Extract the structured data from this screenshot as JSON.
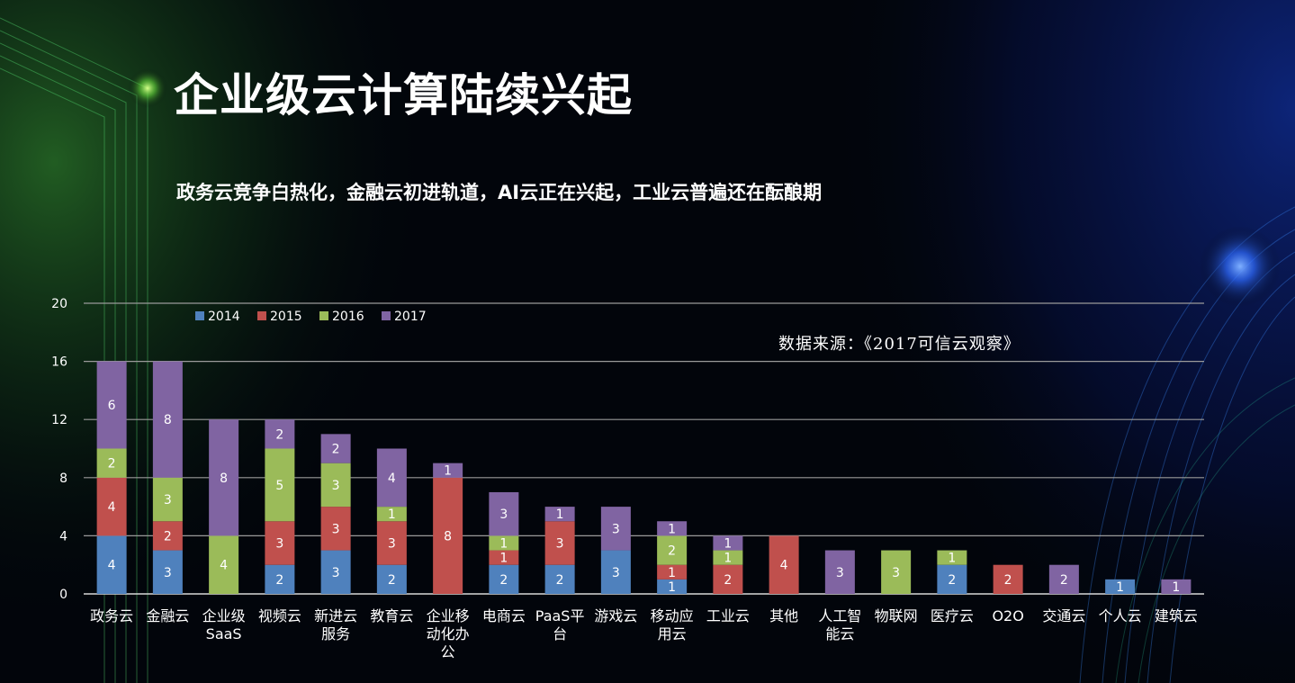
{
  "slide": {
    "title": "企业级云计算陆续兴起",
    "subtitle": "政务云竞争白热化，金融云初进轨道，AI云正在兴起，工业云普遍还在酝酿期",
    "source_note": "数据来源：《2017可信云观察》"
  },
  "chart_data": {
    "type": "bar",
    "stacked": true,
    "categories": [
      "政务云",
      "金融云",
      "企业级SaaS",
      "视频云",
      "新进云服务",
      "教育云",
      "企业移动化办公",
      "电商云",
      "PaaS平台",
      "游戏云",
      "移动应用云",
      "工业云",
      "其他",
      "人工智能云",
      "物联网",
      "医疗云",
      "O2O",
      "交通云",
      "个人云",
      "建筑云"
    ],
    "category_lines": [
      [
        "政务云"
      ],
      [
        "金融云"
      ],
      [
        "企业级",
        "SaaS"
      ],
      [
        "视频云"
      ],
      [
        "新进云",
        "服务"
      ],
      [
        "教育云"
      ],
      [
        "企业移",
        "动化办",
        "公"
      ],
      [
        "电商云"
      ],
      [
        "PaaS平",
        "台"
      ],
      [
        "游戏云"
      ],
      [
        "移动应",
        "用云"
      ],
      [
        "工业云"
      ],
      [
        "其他"
      ],
      [
        "人工智",
        "能云"
      ],
      [
        "物联网"
      ],
      [
        "医疗云"
      ],
      [
        "O2O"
      ],
      [
        "交通云"
      ],
      [
        "个人云"
      ],
      [
        "建筑云"
      ]
    ],
    "series": [
      {
        "name": "2014",
        "color": "#4f81bd",
        "values": [
          4,
          3,
          0,
          2,
          3,
          2,
          0,
          2,
          2,
          3,
          1,
          0,
          0,
          0,
          0,
          2,
          0,
          0,
          1,
          0
        ]
      },
      {
        "name": "2015",
        "color": "#c0504d",
        "values": [
          4,
          2,
          0,
          3,
          3,
          3,
          8,
          1,
          3,
          0,
          1,
          2,
          4,
          0,
          0,
          0,
          2,
          0,
          0,
          0
        ]
      },
      {
        "name": "2016",
        "color": "#9bbb59",
        "values": [
          2,
          3,
          4,
          5,
          3,
          1,
          0,
          1,
          0,
          0,
          2,
          1,
          0,
          0,
          3,
          1,
          0,
          0,
          0,
          0
        ]
      },
      {
        "name": "2017",
        "color": "#8064a2",
        "values": [
          6,
          8,
          8,
          2,
          2,
          4,
          1,
          3,
          1,
          3,
          1,
          1,
          0,
          3,
          0,
          0,
          0,
          2,
          0,
          1
        ]
      }
    ],
    "ylim": [
      0,
      20
    ],
    "yticks": [
      0,
      4,
      8,
      12,
      16,
      20
    ],
    "grid": true,
    "legend": "top-left",
    "xlabel": "",
    "ylabel": ""
  }
}
